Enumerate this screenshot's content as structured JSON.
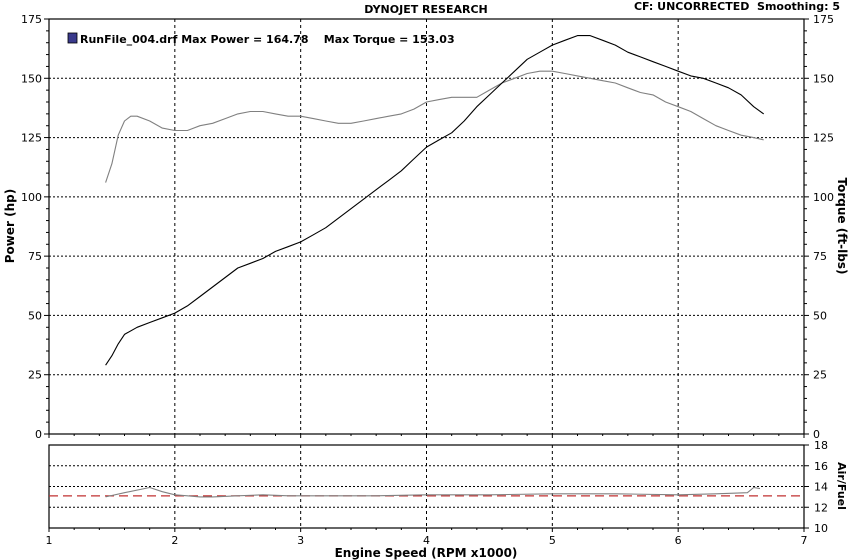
{
  "header": {
    "title": "DYNOJET RESEARCH",
    "right_info": "CF: UNCORRECTED  Smoothing: 5"
  },
  "legend": {
    "text": "RunFile_004.drf Max Power = 164.78    Max Torque = 153.03",
    "swatch_color": "#3a3a8c"
  },
  "colors": {
    "power": "#000000",
    "torque": "#808080",
    "afr": "#808080",
    "afr_target": "#c03030",
    "grid": "#000000"
  },
  "chart_data": [
    {
      "type": "line",
      "xlabel": "Engine Speed (RPM x1000)",
      "ylabel": "Power (hp)",
      "y2label": "Torque (ft-lbs)",
      "xlim": [
        1,
        7
      ],
      "ylim": [
        0,
        175
      ],
      "y2lim": [
        0,
        175
      ],
      "x_ticks": [
        "1",
        "2",
        "3",
        "4",
        "5",
        "6",
        "7"
      ],
      "y_ticks": [
        "0",
        "25",
        "50",
        "75",
        "100",
        "125",
        "150",
        "175"
      ],
      "grid": true,
      "series": [
        {
          "name": "Power",
          "axis": "left",
          "x": [
            1.45,
            1.5,
            1.55,
            1.6,
            1.7,
            1.8,
            1.9,
            2.0,
            2.1,
            2.2,
            2.3,
            2.4,
            2.5,
            2.6,
            2.7,
            2.8,
            2.9,
            3.0,
            3.1,
            3.2,
            3.3,
            3.4,
            3.5,
            3.6,
            3.7,
            3.8,
            3.9,
            4.0,
            4.1,
            4.2,
            4.3,
            4.4,
            4.5,
            4.6,
            4.7,
            4.8,
            4.9,
            5.0,
            5.1,
            5.2,
            5.3,
            5.4,
            5.5,
            5.6,
            5.7,
            5.8,
            5.9,
            6.0,
            6.1,
            6.2,
            6.3,
            6.4,
            6.5,
            6.6,
            6.68
          ],
          "values": [
            29,
            33,
            38,
            42,
            45,
            47,
            49,
            51,
            54,
            58,
            62,
            66,
            70,
            72,
            74,
            77,
            79,
            81,
            84,
            87,
            91,
            95,
            99,
            103,
            107,
            111,
            116,
            121,
            124,
            127,
            132,
            138,
            143,
            148,
            153,
            158,
            161,
            164,
            166,
            168,
            168,
            166,
            164,
            161,
            159,
            157,
            155,
            153,
            151,
            150,
            148,
            146,
            143,
            138,
            135
          ]
        },
        {
          "name": "Torque",
          "axis": "right",
          "x": [
            1.45,
            1.5,
            1.55,
            1.6,
            1.65,
            1.7,
            1.8,
            1.9,
            2.0,
            2.1,
            2.2,
            2.3,
            2.4,
            2.5,
            2.6,
            2.7,
            2.8,
            2.9,
            3.0,
            3.1,
            3.2,
            3.3,
            3.4,
            3.5,
            3.6,
            3.7,
            3.8,
            3.9,
            4.0,
            4.1,
            4.2,
            4.3,
            4.4,
            4.5,
            4.6,
            4.7,
            4.8,
            4.9,
            5.0,
            5.1,
            5.2,
            5.3,
            5.4,
            5.5,
            5.6,
            5.7,
            5.8,
            5.9,
            6.0,
            6.1,
            6.2,
            6.3,
            6.4,
            6.5,
            6.6,
            6.68
          ],
          "values": [
            106,
            114,
            126,
            132,
            134,
            134,
            132,
            129,
            128,
            128,
            130,
            131,
            133,
            135,
            136,
            136,
            135,
            134,
            134,
            133,
            132,
            131,
            131,
            132,
            133,
            134,
            135,
            137,
            140,
            141,
            142,
            142,
            142,
            145,
            148,
            150,
            152,
            153,
            153,
            152,
            151,
            150,
            149,
            148,
            146,
            144,
            143,
            140,
            138,
            136,
            133,
            130,
            128,
            126,
            125,
            124
          ]
        }
      ]
    },
    {
      "type": "line",
      "ylabel": "Air/Fuel",
      "xlim": [
        1,
        7
      ],
      "ylim": [
        10,
        18
      ],
      "y_ticks": [
        "10",
        "12",
        "14",
        "16",
        "18"
      ],
      "grid": true,
      "target_afr": 13.1,
      "series": [
        {
          "axis": "left",
          "x": [
            1.45,
            1.6,
            1.8,
            1.9,
            2.0,
            2.1,
            2.2,
            2.3,
            2.5,
            2.7,
            2.9,
            3.2,
            3.6,
            4.0,
            4.5,
            5.0,
            5.5,
            6.0,
            6.3,
            6.55,
            6.6,
            6.65
          ],
          "values": [
            13.0,
            13.4,
            13.9,
            13.5,
            13.2,
            13.1,
            13.0,
            13.0,
            13.1,
            13.2,
            13.1,
            13.1,
            13.1,
            13.2,
            13.2,
            13.3,
            13.3,
            13.2,
            13.3,
            13.4,
            13.9,
            13.8
          ]
        }
      ]
    }
  ]
}
